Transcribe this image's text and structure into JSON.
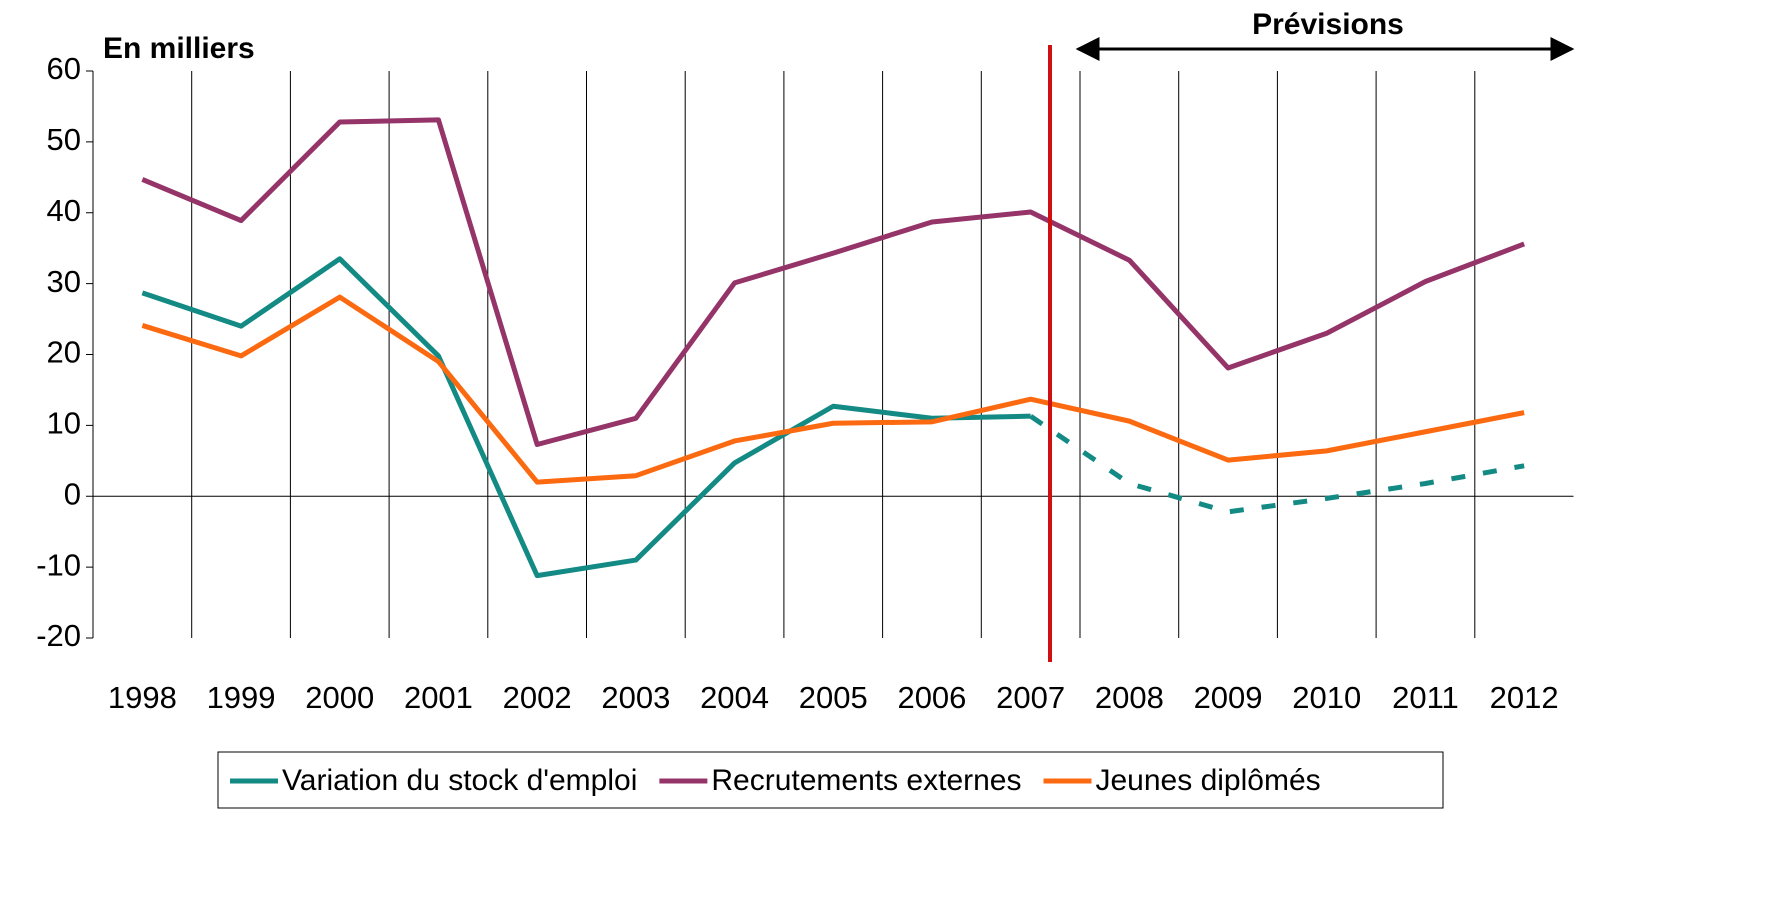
{
  "chart_data": {
    "type": "line",
    "title": "En milliers",
    "annotation": "Prévisions",
    "categories": [
      "1998",
      "1999",
      "2000",
      "2001",
      "2002",
      "2003",
      "2004",
      "2005",
      "2006",
      "2007",
      "2008",
      "2009",
      "2010",
      "2011",
      "2012"
    ],
    "series": [
      {
        "name": "Variation du stock d'emploi",
        "color": "#138a84",
        "dashed_from": 9,
        "values": [
          28.7,
          24,
          33.5,
          19.8,
          -11.2,
          -9,
          4.7,
          12.7,
          11,
          11.3,
          1.8,
          -2.2,
          -0.3,
          1.8,
          4.3
        ]
      },
      {
        "name": "Recrutements externes",
        "color": "#953468",
        "values": [
          44.7,
          38.9,
          52.8,
          53.1,
          7.3,
          11,
          30.1,
          34.3,
          38.7,
          40.1,
          33.3,
          18.1,
          23,
          30.3,
          35.6
        ]
      },
      {
        "name": "Jeunes diplômés",
        "color": "#fb6a10",
        "values": [
          24.1,
          19.8,
          28.1,
          19,
          2,
          2.9,
          7.8,
          10.3,
          10.5,
          13.7,
          10.6,
          5.1,
          6.4,
          9.1,
          11.8
        ]
      }
    ],
    "ylim": [
      -20,
      60
    ],
    "yticks": [
      -20,
      -10,
      0,
      10,
      20,
      30,
      40,
      50,
      60
    ],
    "grid": true,
    "legend": "bottom"
  }
}
